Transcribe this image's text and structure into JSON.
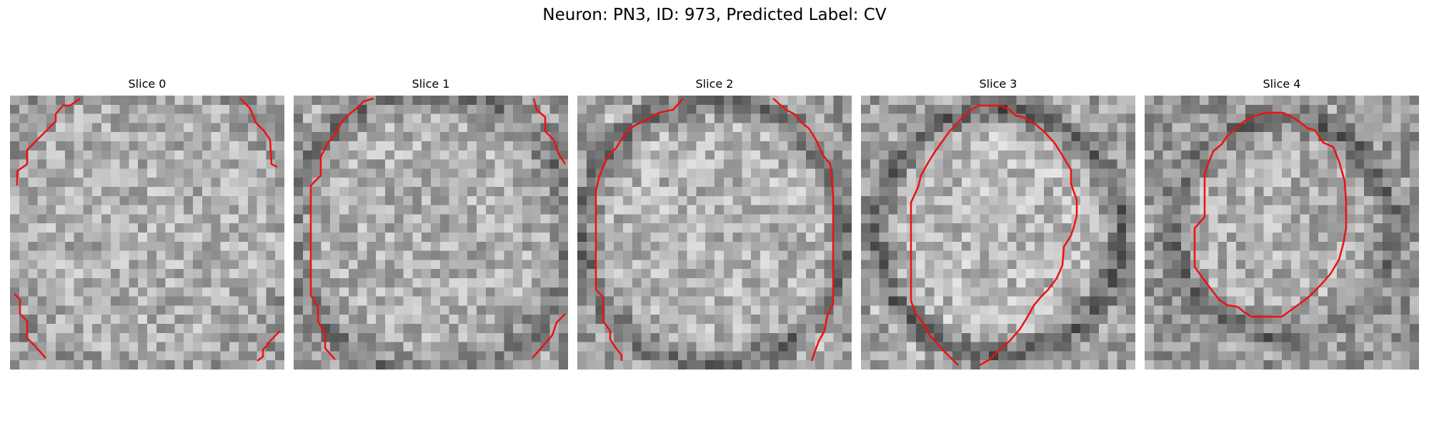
{
  "figure": {
    "title": "Neuron: PN3, ID: 973, Predicted Label: CV",
    "panels": [
      {
        "title": "Slice 0"
      },
      {
        "title": "Slice 1"
      },
      {
        "title": "Slice 2"
      },
      {
        "title": "Slice 3"
      },
      {
        "title": "Slice 4"
      }
    ],
    "colors": {
      "contour": "#ee1111",
      "background": "#ffffff"
    },
    "image_colormap": "grayscale"
  }
}
